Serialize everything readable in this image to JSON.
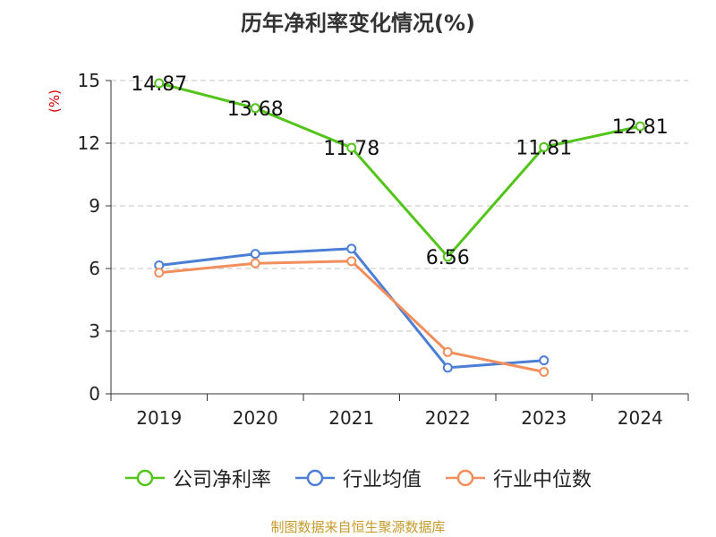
{
  "chart_data": {
    "type": "line",
    "title": "历年净利率变化情况(%)",
    "ylabel": "(%)",
    "xlabel": "",
    "categories": [
      "2019",
      "2020",
      "2021",
      "2022",
      "2023",
      "2024"
    ],
    "ylim": [
      0,
      15
    ],
    "yticks": [
      0,
      3,
      6,
      9,
      12,
      15
    ],
    "grid": true,
    "legend_position": "bottom",
    "series": [
      {
        "name": "公司净利率",
        "color": "#52c41a",
        "values": [
          14.87,
          13.68,
          11.78,
          6.56,
          11.81,
          12.81
        ],
        "labels": [
          "14.87",
          "13.68",
          "11.78",
          "6.56",
          "11.81",
          "12.81"
        ]
      },
      {
        "name": "行业均值",
        "color": "#4b7fd6",
        "values": [
          6.15,
          6.7,
          6.95,
          1.25,
          1.6,
          null
        ]
      },
      {
        "name": "行业中位数",
        "color": "#f28e5c",
        "values": [
          5.8,
          6.25,
          6.35,
          2.0,
          1.05,
          null
        ]
      }
    ],
    "source": "制图数据来自恒生聚源数据库"
  }
}
